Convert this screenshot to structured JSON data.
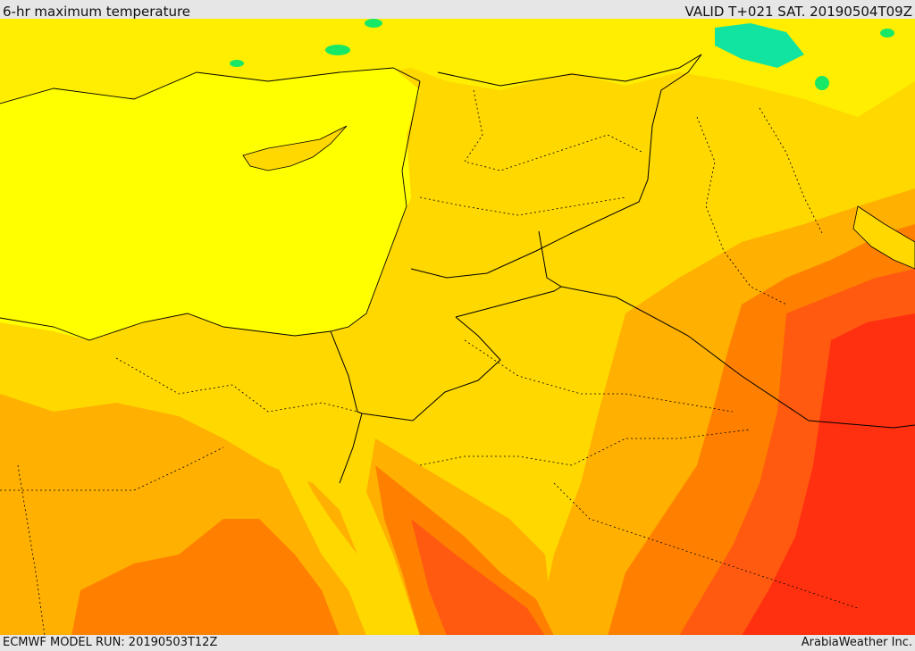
{
  "header": {
    "title": "6-hr maximum temperature",
    "valid": "VALID T+021 SAT. 20190504T09Z"
  },
  "footer": {
    "model_run": "ECMWF MODEL RUN: 20190503T12Z",
    "credit": "ArabiaWeather Inc."
  },
  "colors": {
    "sea": "#ffff00",
    "warm_yellow": "#ffd800",
    "light_orange": "#ffb000",
    "orange": "#ff8000",
    "red_orange": "#ff5a10",
    "red": "#ff3010",
    "green": "#17e866",
    "teal": "#11e4a0",
    "borders": "#000000"
  }
}
